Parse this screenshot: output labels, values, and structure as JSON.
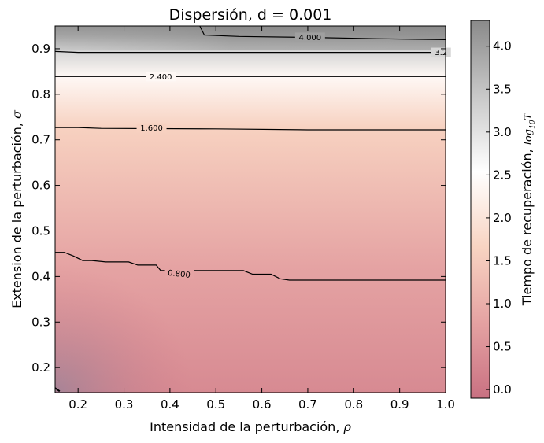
{
  "chart_data": {
    "type": "heatmap",
    "title": "Dispersión, d = 0.001",
    "xlabel": "Intensidad de la perturbación,",
    "xlabel_symbol": "ρ",
    "ylabel": "Extension de la perturbación,",
    "ylabel_symbol": "σ",
    "colorbar_label": "Tiempo de recuperación,",
    "colorbar_symbol": "log",
    "colorbar_symbol_sub": "10",
    "colorbar_symbol_var": "T",
    "xlim": [
      0.15,
      1.0
    ],
    "ylim": [
      0.145,
      0.95
    ],
    "xticks": [
      0.2,
      0.3,
      0.4,
      0.5,
      0.6,
      0.7,
      0.8,
      0.9,
      1.0
    ],
    "xtick_labels": [
      "0.2",
      "0.3",
      "0.4",
      "0.5",
      "0.6",
      "0.7",
      "0.8",
      "0.9",
      "1.0"
    ],
    "yticks": [
      0.2,
      0.3,
      0.4,
      0.5,
      0.6,
      0.7,
      0.8,
      0.9
    ],
    "ytick_labels": [
      "0.2",
      "0.3",
      "0.4",
      "0.5",
      "0.6",
      "0.7",
      "0.8",
      "0.9"
    ],
    "colorbar_range": [
      -0.1,
      4.3
    ],
    "colorbar_ticks": [
      0.0,
      0.5,
      1.0,
      1.5,
      2.0,
      2.5,
      3.0,
      3.5,
      4.0
    ],
    "colorbar_tick_labels": [
      "0.0",
      "0.5",
      "1.0",
      "1.5",
      "2.0",
      "2.5",
      "3.0",
      "3.5",
      "4.0"
    ],
    "colormap": [
      "#c97182",
      "#e5a2a2",
      "#f8d4c2",
      "#ffffff",
      "#c8c8c8",
      "#8a8a8a"
    ],
    "contours": [
      {
        "level": 0.8,
        "label": "0.800",
        "points": [
          [
            0.15,
            0.453
          ],
          [
            0.17,
            0.453
          ],
          [
            0.19,
            0.445
          ],
          [
            0.21,
            0.435
          ],
          [
            0.23,
            0.435
          ],
          [
            0.26,
            0.432
          ],
          [
            0.31,
            0.432
          ],
          [
            0.33,
            0.425
          ],
          [
            0.37,
            0.425
          ],
          [
            0.38,
            0.413
          ],
          [
            0.56,
            0.413
          ],
          [
            0.58,
            0.405
          ],
          [
            0.62,
            0.405
          ],
          [
            0.64,
            0.395
          ],
          [
            0.66,
            0.392
          ],
          [
            1.0,
            0.392
          ]
        ]
      },
      {
        "level": 1.6,
        "label": "1.600",
        "points": [
          [
            0.15,
            0.727
          ],
          [
            0.2,
            0.727
          ],
          [
            0.25,
            0.725
          ],
          [
            0.5,
            0.724
          ],
          [
            0.7,
            0.722
          ],
          [
            1.0,
            0.722
          ]
        ]
      },
      {
        "level": 2.4,
        "label": "2.400",
        "points": [
          [
            0.15,
            0.839
          ],
          [
            1.0,
            0.839
          ]
        ]
      },
      {
        "level": 3.2,
        "label": "3.2",
        "points": [
          [
            0.15,
            0.894
          ],
          [
            0.2,
            0.892
          ],
          [
            0.4,
            0.892
          ],
          [
            0.7,
            0.892
          ],
          [
            1.0,
            0.892
          ]
        ]
      },
      {
        "level": 4.0,
        "label": "4.000",
        "points": [
          [
            0.465,
            0.95
          ],
          [
            0.475,
            0.93
          ],
          [
            0.55,
            0.927
          ],
          [
            0.7,
            0.925
          ],
          [
            0.85,
            0.922
          ],
          [
            1.0,
            0.92
          ]
        ]
      },
      {
        "level": 0.0,
        "label": "",
        "points": [
          [
            0.15,
            0.155
          ],
          [
            0.16,
            0.148
          ]
        ]
      }
    ]
  }
}
